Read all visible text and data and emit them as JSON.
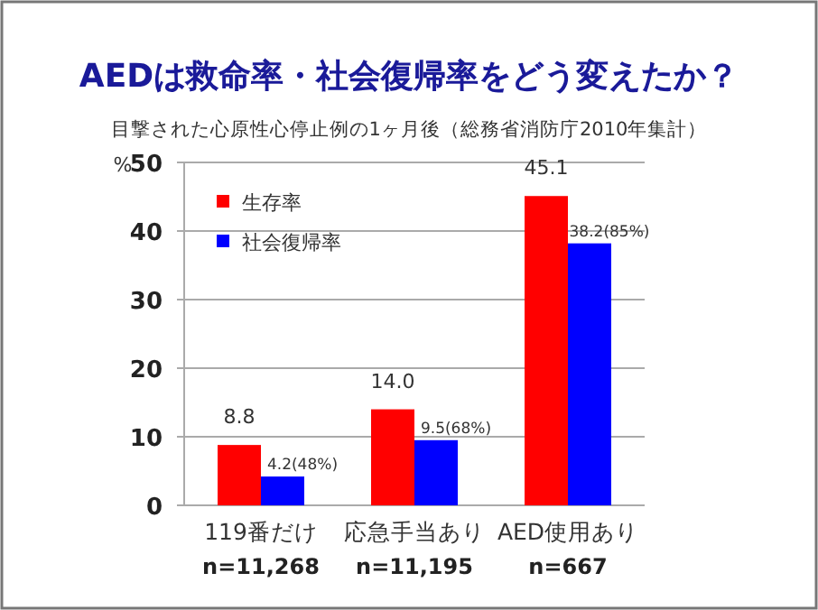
{
  "chart_data": {
    "type": "bar",
    "title": "AEDは救命率・社会復帰率をどう変えたか？",
    "subtitle": "目撃された心原性心停止例の1ヶ月後（総務省消防庁2010年集計）",
    "ylabel": "%",
    "categories": [
      "119番だけ",
      "応急手当あり",
      "AED使用あり"
    ],
    "series": [
      {
        "name": "生存率",
        "color": "#ff0000",
        "values": [
          8.8,
          14.0,
          45.1
        ],
        "value_labels": [
          "8.8",
          "14.0",
          "45.1"
        ]
      },
      {
        "name": "社会復帰率",
        "color": "#0000ff",
        "values": [
          4.2,
          9.5,
          38.2
        ],
        "value_labels": [
          "4.2(48%)",
          "9.5(68%)",
          "38.2(85%)"
        ]
      }
    ],
    "annotations": [
      "n=11,268",
      "n=11,195",
      "n=667"
    ],
    "ylim": [
      0,
      50
    ],
    "yticks": [
      0,
      10,
      20,
      30,
      40,
      50
    ],
    "grid": "y",
    "legend": "top left"
  }
}
